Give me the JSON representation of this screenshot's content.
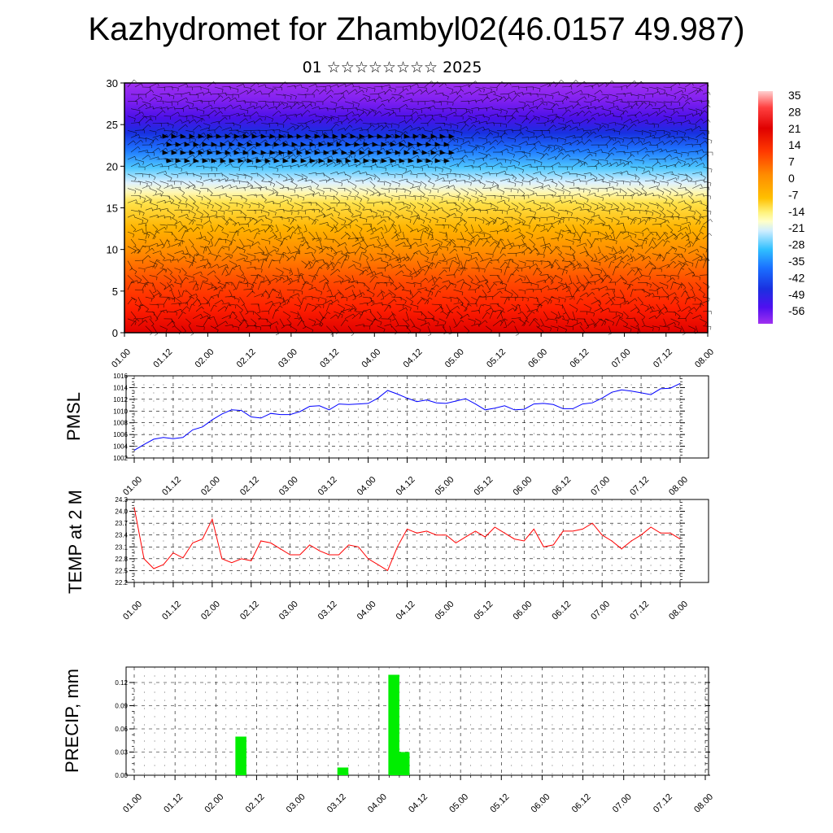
{
  "title": "Kazhydromet for Zhambyl02(46.0157 49.987)",
  "subtitle": "01 ☆☆☆☆☆☆☆☆ 2025",
  "x_tick_labels": [
    "01.00",
    "01.12",
    "02.00",
    "02.12",
    "03.00",
    "03.12",
    "04.00",
    "04.12",
    "05.00",
    "05.12",
    "06.00",
    "06.12",
    "07.00",
    "07.12",
    "08.00"
  ],
  "colors": {
    "pmsl_line": "#0000ff",
    "temp_line": "#ff0000",
    "precip_bar": "#00ee00",
    "grid": "#000000"
  },
  "chart_data": [
    {
      "type": "heatmap",
      "name": "cross-section",
      "ylim": [
        0,
        30
      ],
      "y_ticks": [
        "0",
        "5",
        "10",
        "15",
        "20",
        "25",
        "30"
      ],
      "xlim": [
        0,
        168
      ],
      "colorbar_labels": [
        "35",
        "28",
        "21",
        "14",
        "7",
        "0",
        "-7",
        "-14",
        "-21",
        "-28",
        "-35",
        "-42",
        "-49",
        "-56"
      ],
      "colorbar_range": [
        -63,
        42
      ],
      "colorbar_colors": [
        "#ffd0d0",
        "#ff6a6a",
        "#e00000",
        "#ff2400",
        "#ff5a00",
        "#ff9000",
        "#ffc000",
        "#ffff9a",
        "#d8f0ff",
        "#30c8ff",
        "#1e90ff",
        "#1040e0",
        "#3000f0",
        "#7a20e0",
        "#a030f0"
      ],
      "altitude_temperature_profile": [
        [
          0,
          34
        ],
        [
          3,
          32
        ],
        [
          6,
          27
        ],
        [
          9,
          20
        ],
        [
          12,
          12
        ],
        [
          15,
          3
        ],
        [
          17,
          -5
        ],
        [
          19,
          -15
        ],
        [
          21,
          -30
        ],
        [
          23,
          -43
        ],
        [
          25,
          -56
        ],
        [
          27,
          -52
        ],
        [
          30,
          -46
        ]
      ],
      "overlay": "wind-barbs"
    },
    {
      "type": "line",
      "ylabel": "PMSL",
      "ylim": [
        1002,
        1016
      ],
      "y_ticks": [
        "1002",
        "1004",
        "1006",
        "1008",
        "1010",
        "1012",
        "1014",
        "1016"
      ],
      "xlim": [
        0,
        168
      ],
      "x": [
        0,
        3,
        6,
        9,
        12,
        15,
        18,
        21,
        24,
        27,
        30,
        33,
        36,
        39,
        42,
        45,
        48,
        51,
        54,
        57,
        60,
        63,
        66,
        69,
        72,
        75,
        78,
        81,
        84,
        87,
        90,
        93,
        96,
        99,
        102,
        105,
        108,
        111,
        114,
        117,
        120,
        123,
        126,
        129,
        132,
        135,
        138,
        141,
        144,
        147,
        150,
        153,
        156,
        159,
        162,
        165,
        168
      ],
      "series": [
        {
          "name": "",
          "values": [
            1003.3,
            1004.3,
            1005.2,
            1005.5,
            1005.3,
            1005.5,
            1006.8,
            1007.3,
            1008.5,
            1009.5,
            1010.2,
            1010.1,
            1009.0,
            1008.8,
            1009.6,
            1009.4,
            1009.4,
            1009.9,
            1010.8,
            1010.9,
            1010.2,
            1011.2,
            1011.1,
            1011.2,
            1011.3,
            1012.2,
            1013.5,
            1012.9,
            1012.2,
            1011.6,
            1011.9,
            1011.4,
            1011.3,
            1011.7,
            1012.1,
            1011.2,
            1010.2,
            1010.5,
            1010.9,
            1010.2,
            1010.3,
            1011.2,
            1011.3,
            1011.1,
            1010.4,
            1010.4,
            1011.2,
            1011.4,
            1012.2,
            1013.2,
            1013.6,
            1013.4,
            1013.1,
            1012.8,
            1013.8,
            1013.9,
            1014.7
          ]
        }
      ]
    },
    {
      "type": "line",
      "ylabel": "TEMP at 2 M",
      "ylim": [
        22.2,
        24.3
      ],
      "y_ticks": [
        "22.2",
        "22.5",
        "22.8",
        "23.1",
        "23.4",
        "23.7",
        "24.0",
        "24.3"
      ],
      "xlim": [
        0,
        168
      ],
      "x": [
        0,
        3,
        6,
        9,
        12,
        15,
        18,
        21,
        24,
        27,
        30,
        33,
        36,
        39,
        42,
        45,
        48,
        51,
        54,
        57,
        60,
        63,
        66,
        69,
        72,
        75,
        78,
        81,
        84,
        87,
        90,
        93,
        96,
        99,
        102,
        105,
        108,
        111,
        114,
        117,
        120,
        123,
        126,
        129,
        132,
        135,
        138,
        141,
        144,
        147,
        150,
        153,
        156,
        159,
        162,
        165,
        168
      ],
      "series": [
        {
          "name": "",
          "values": [
            24.1,
            22.8,
            22.55,
            22.65,
            22.95,
            22.82,
            23.2,
            23.3,
            23.8,
            22.8,
            22.7,
            22.8,
            22.75,
            23.25,
            23.2,
            23.05,
            22.9,
            22.9,
            23.15,
            23.0,
            22.9,
            22.9,
            23.15,
            23.1,
            22.8,
            22.65,
            22.5,
            23.1,
            23.55,
            23.45,
            23.5,
            23.4,
            23.4,
            23.2,
            23.35,
            23.5,
            23.35,
            23.6,
            23.45,
            23.3,
            23.25,
            23.55,
            23.1,
            23.15,
            23.5,
            23.5,
            23.55,
            23.7,
            23.4,
            23.25,
            23.05,
            23.25,
            23.4,
            23.6,
            23.45,
            23.45,
            23.3
          ]
        }
      ]
    },
    {
      "type": "bar",
      "ylabel": "PRECIP, mm",
      "ylim": [
        0,
        0.14
      ],
      "y_ticks": [
        "0.00",
        "0.03",
        "0.06",
        "0.09",
        "0.12"
      ],
      "xlim": [
        0,
        168
      ],
      "bars": [
        {
          "x": 30,
          "value": 0.05
        },
        {
          "x": 60,
          "value": 0.01
        },
        {
          "x": 75,
          "value": 0.13
        },
        {
          "x": 78,
          "value": 0.03
        }
      ]
    }
  ]
}
